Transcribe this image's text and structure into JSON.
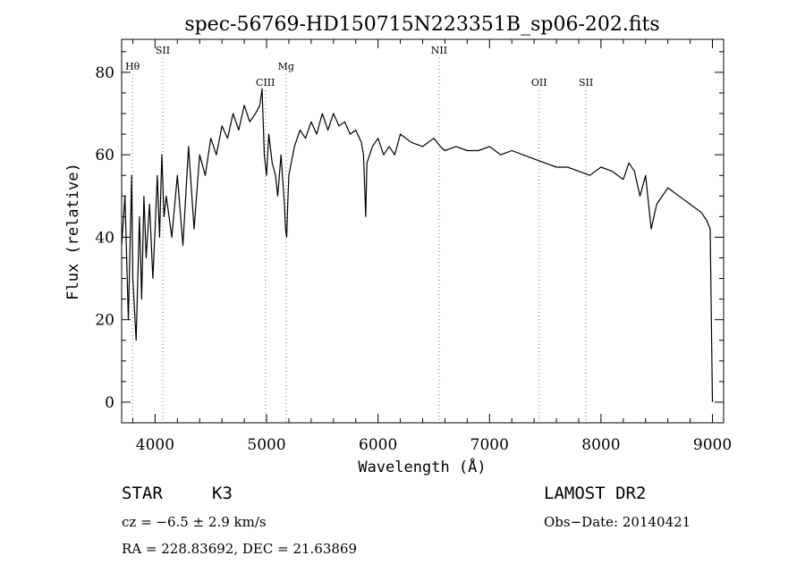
{
  "chart_data": {
    "type": "line",
    "title": "spec-56769-HD150715N223351B_sp06-202.fits",
    "xlabel": "Wavelength (Å)",
    "ylabel": "Flux (relative)",
    "xlim": [
      3700,
      9100
    ],
    "ylim": [
      -5,
      88
    ],
    "x_ticks": [
      4000,
      5000,
      6000,
      7000,
      8000,
      9000
    ],
    "x_tick_labels": [
      "4000",
      "5000",
      "6000",
      "7000",
      "8000",
      "9000"
    ],
    "y_ticks": [
      0,
      20,
      40,
      60,
      80
    ],
    "y_tick_labels": [
      "0",
      "20",
      "40",
      "60",
      "80"
    ],
    "grid": false,
    "series": [
      {
        "x": [
          3700,
          3730,
          3760,
          3790,
          3800,
          3830,
          3860,
          3880,
          3900,
          3920,
          3950,
          3980,
          4000,
          4020,
          4040,
          4060,
          4080,
          4100,
          4150,
          4200,
          4250,
          4300,
          4350,
          4400,
          4450,
          4500,
          4550,
          4600,
          4650,
          4700,
          4750,
          4800,
          4850,
          4900,
          4940,
          4960,
          4980,
          5000,
          5020,
          5050,
          5080,
          5100,
          5130,
          5160,
          5170,
          5180,
          5190,
          5200,
          5250,
          5300,
          5350,
          5400,
          5450,
          5500,
          5550,
          5600,
          5650,
          5700,
          5750,
          5800,
          5850,
          5870,
          5890,
          5900,
          5950,
          6000,
          6050,
          6100,
          6150,
          6200,
          6300,
          6400,
          6500,
          6560,
          6600,
          6700,
          6800,
          6900,
          7000,
          7100,
          7200,
          7300,
          7400,
          7500,
          7600,
          7700,
          7800,
          7900,
          8000,
          8100,
          8200,
          8250,
          8300,
          8350,
          8400,
          8450,
          8500,
          8600,
          8700,
          8800,
          8900,
          8950,
          8980,
          9000
        ],
        "y": [
          38,
          50,
          20,
          55,
          30,
          15,
          45,
          25,
          50,
          35,
          48,
          30,
          42,
          55,
          40,
          60,
          45,
          50,
          40,
          55,
          38,
          62,
          42,
          60,
          55,
          64,
          60,
          67,
          64,
          70,
          66,
          72,
          68,
          70,
          72,
          76,
          60,
          55,
          65,
          58,
          55,
          50,
          60,
          48,
          42,
          40,
          48,
          55,
          62,
          66,
          64,
          68,
          65,
          70,
          66,
          70,
          67,
          68,
          65,
          66,
          63,
          60,
          45,
          58,
          62,
          64,
          60,
          62,
          60,
          65,
          63,
          62,
          64,
          62,
          61,
          62,
          61,
          61,
          62,
          60,
          61,
          60,
          59,
          58,
          57,
          57,
          56,
          55,
          57,
          56,
          54,
          58,
          56,
          50,
          55,
          42,
          48,
          52,
          50,
          48,
          46,
          44,
          42,
          0
        ]
      }
    ],
    "line_markers": [
      {
        "label": "Hθ",
        "wavelength": 3798,
        "row": 2
      },
      {
        "label": "SII",
        "wavelength": 4069,
        "row": 1
      },
      {
        "label": "CIII",
        "wavelength": 4990,
        "row": 3
      },
      {
        "label": "Mg",
        "wavelength": 5175,
        "row": 2
      },
      {
        "label": "NII",
        "wavelength": 6548,
        "row": 1
      },
      {
        "label": "OII",
        "wavelength": 7445,
        "row": 3
      },
      {
        "label": "SII",
        "wavelength": 7865,
        "row": 3
      }
    ]
  },
  "info": {
    "obj_class": "STAR",
    "subclass": "K3",
    "survey": "LAMOST DR2",
    "cz": "cz = −6.5 ± 2.9 km/s",
    "obs_date": "Obs−Date: 20140421",
    "coords": "RA = 228.83692, DEC =  21.63869"
  }
}
